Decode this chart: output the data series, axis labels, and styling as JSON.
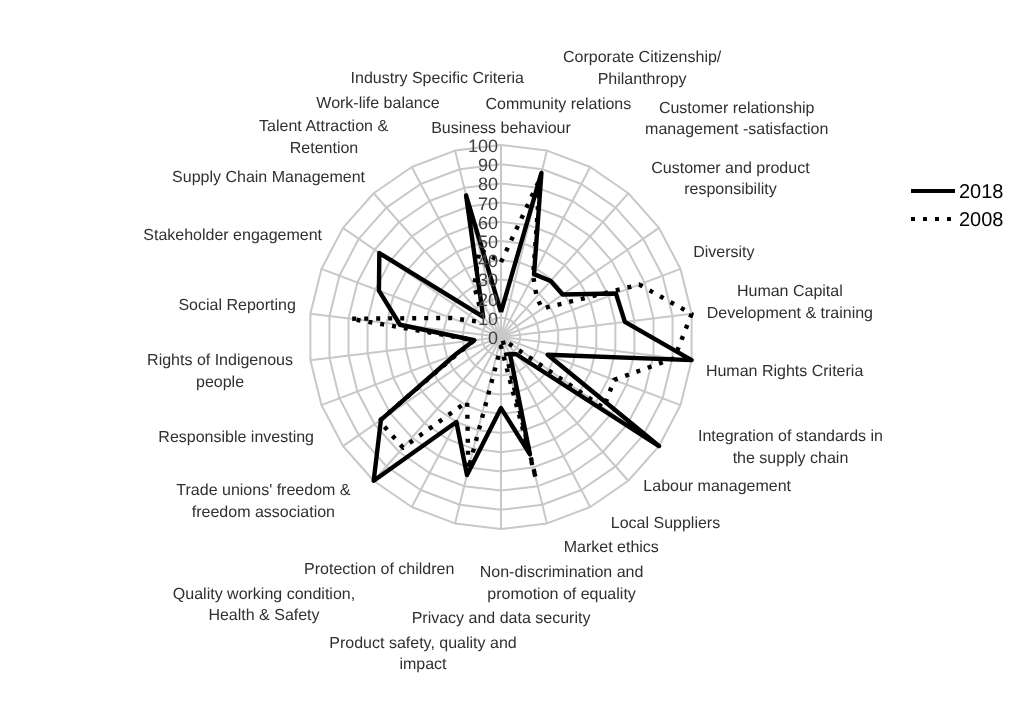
{
  "chart_data": {
    "type": "radar",
    "categories": [
      "Business behaviour",
      "Community relations",
      "Corporate Citizenship/\nPhilanthropy",
      "Customer relationship\nmanagement -satisfaction",
      "Customer and product\nresponsibility",
      "Diversity",
      "Human Capital\nDevelopment & training",
      "Human Rights Criteria",
      "Integration of standards in\nthe supply chain",
      "Labour management",
      "Local Suppliers",
      "Market ethics",
      "Non-discrimination and\npromotion of equality",
      "Privacy and data security",
      "Product safety, quality and\nimpact",
      "Protection of children",
      "Quality working condition,\nHealth & Safety",
      "Trade unions' freedom &\nfreedom association",
      "Responsible investing",
      "Rights of Indigenous\npeople",
      "Social Reporting",
      "Stakeholder engagement",
      "Supply Chain Management",
      "Talent Attraction &\nRetention",
      "Work-life balance",
      "Industry Specific Criteria"
    ],
    "series": [
      {
        "name": "2018",
        "color": "#000000",
        "line_style": "solid",
        "values": [
          13,
          88,
          37,
          39,
          39,
          64,
          65,
          100,
          26,
          100,
          12,
          10,
          63,
          37,
          74,
          50,
          100,
          76,
          25,
          14,
          53,
          68,
          77,
          14,
          23,
          76
        ]
      },
      {
        "name": "2008",
        "color": "#000000",
        "line_style": "dotted",
        "values": [
          39,
          85,
          36,
          28,
          26,
          77,
          100,
          91,
          63,
          65,
          2,
          2,
          76,
          5,
          71,
          38,
          77,
          77,
          24,
          14,
          79,
          28,
          14,
          15,
          30,
          47
        ]
      }
    ],
    "ylim": [
      0,
      100
    ],
    "yticks": [
      0,
      10,
      20,
      30,
      40,
      50,
      60,
      70,
      80,
      90,
      100
    ],
    "grid": true,
    "legend": "right"
  }
}
